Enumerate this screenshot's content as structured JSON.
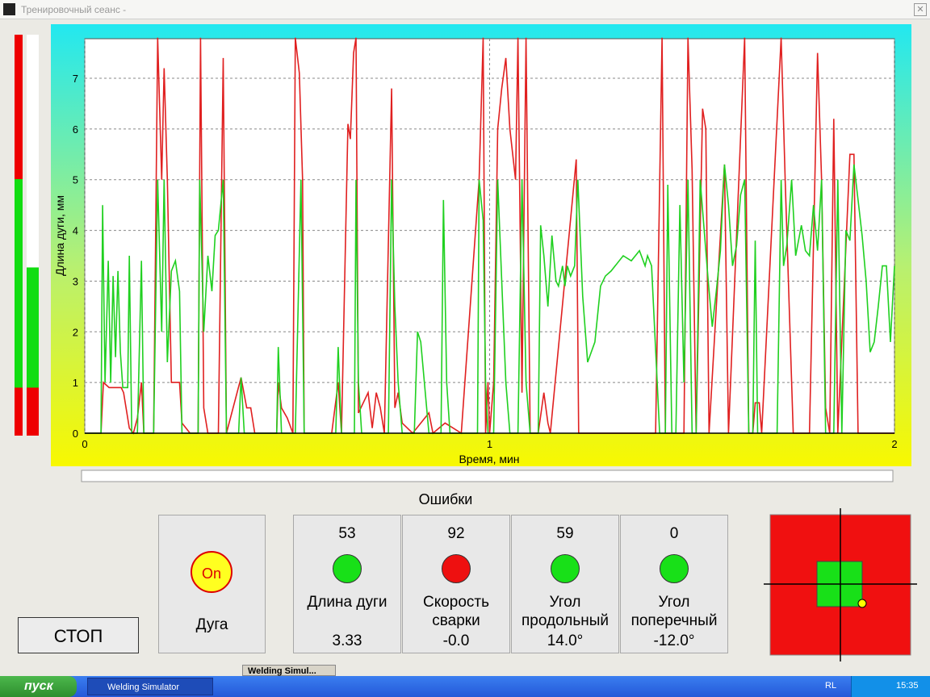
{
  "window": {
    "title": "Тренировочный сеанс -"
  },
  "chart_data": {
    "type": "line",
    "ylabel": "Длина дуги, мм",
    "xlabel": "Время, мин",
    "xlim": [
      0,
      2
    ],
    "xticks": [
      0,
      1,
      2
    ],
    "ylim": [
      0,
      7.78
    ],
    "yticks": [
      0,
      1,
      2,
      3,
      4,
      5,
      6,
      7
    ],
    "grid": true,
    "series": [
      {
        "color": "#e02020",
        "x": [
          0,
          0.04,
          0.046,
          0.06,
          0.09,
          0.096,
          0.11,
          0.12,
          0.13,
          0.14,
          0.146,
          0.17,
          0.18,
          0.19,
          0.196,
          0.204,
          0.214,
          0.234,
          0.24,
          0.26,
          0.28,
          0.286,
          0.294,
          0.304,
          0.33,
          0.342,
          0.35,
          0.386,
          0.4,
          0.41,
          0.42,
          0.474,
          0.478,
          0.486,
          0.5,
          0.514,
          0.52,
          0.53,
          0.538,
          0.542,
          0.61,
          0.626,
          0.634,
          0.65,
          0.656,
          0.664,
          0.67,
          0.676,
          0.7,
          0.71,
          0.72,
          0.73,
          0.74,
          0.758,
          0.766,
          0.774,
          0.784,
          0.81,
          0.85,
          0.86,
          0.89,
          0.91,
          0.93,
          0.974,
          0.984,
          0.99,
          0.996,
          1.0,
          1.01,
          1.02,
          1.03,
          1.04,
          1.05,
          1.064,
          1.07,
          1.08,
          1.09,
          1.1,
          1.12,
          1.134,
          1.144,
          1.15,
          1.214,
          1.22,
          1.41,
          1.426,
          1.434,
          1.48,
          1.49,
          1.5,
          1.51,
          1.526,
          1.534,
          1.542,
          1.58,
          1.59,
          1.63,
          1.64,
          1.65,
          1.656,
          1.666,
          1.672,
          1.72,
          1.73,
          1.75,
          1.79,
          1.81,
          1.82,
          1.83,
          1.84,
          1.85,
          1.86,
          1.89,
          1.9,
          1.91,
          2.0
        ],
        "values": [
          0,
          0,
          1,
          0.9,
          0.9,
          0.8,
          0.1,
          0,
          0.3,
          1,
          0,
          0,
          7.8,
          5,
          7.2,
          5,
          1,
          1,
          0.2,
          0,
          0,
          7.8,
          0.5,
          0,
          0,
          7.4,
          0,
          1.1,
          0.5,
          0.5,
          0,
          0,
          1,
          0.5,
          0.3,
          0,
          7.8,
          7.1,
          5,
          0,
          0,
          1,
          0,
          6.1,
          5.8,
          7.5,
          7.8,
          0.4,
          0.8,
          0.1,
          0.8,
          0.5,
          0,
          6.8,
          0.5,
          0.8,
          0.2,
          0,
          0.4,
          0,
          0.2,
          0.1,
          0,
          5,
          7.8,
          0,
          1,
          0,
          1,
          6,
          6.8,
          7.4,
          6,
          5,
          7.8,
          0.8,
          7.8,
          0,
          0,
          0.8,
          0.2,
          0,
          5.4,
          0,
          0,
          7.8,
          0,
          0,
          7.8,
          5.2,
          0,
          6.4,
          6,
          0,
          5.3,
          0,
          7.8,
          0,
          0,
          0.6,
          0.6,
          0,
          7.8,
          5,
          0,
          0,
          7.5,
          5,
          0.5,
          0,
          6.2,
          0,
          5.5,
          5.5,
          0,
          0
        ]
      },
      {
        "color": "#20d020",
        "x": [
          0,
          0.04,
          0.044,
          0.05,
          0.058,
          0.064,
          0.07,
          0.076,
          0.082,
          0.088,
          0.094,
          0.106,
          0.11,
          0.116,
          0.13,
          0.14,
          0.146,
          0.17,
          0.18,
          0.19,
          0.196,
          0.204,
          0.214,
          0.224,
          0.234,
          0.24,
          0.28,
          0.284,
          0.294,
          0.304,
          0.314,
          0.322,
          0.33,
          0.342,
          0.35,
          0.38,
          0.386,
          0.394,
          0.474,
          0.478,
          0.486,
          0.52,
          0.534,
          0.542,
          0.62,
          0.626,
          0.634,
          0.666,
          0.67,
          0.676,
          0.684,
          0.75,
          0.758,
          0.766,
          0.774,
          0.784,
          0.814,
          0.822,
          0.83,
          0.85,
          0.88,
          0.886,
          0.894,
          0.902,
          0.97,
          0.974,
          0.984,
          0.99,
          0.996,
          1.01,
          1.02,
          1.03,
          1.04,
          1.05,
          1.07,
          1.08,
          1.09,
          1.1,
          1.12,
          1.126,
          1.134,
          1.144,
          1.154,
          1.164,
          1.17,
          1.18,
          1.186,
          1.192,
          1.2,
          1.21,
          1.218,
          1.23,
          1.242,
          1.26,
          1.274,
          1.286,
          1.3,
          1.33,
          1.35,
          1.37,
          1.384,
          1.39,
          1.4,
          1.42,
          1.434,
          1.44,
          1.45,
          1.46,
          1.47,
          1.48,
          1.49,
          1.5,
          1.51,
          1.52,
          1.53,
          1.54,
          1.55,
          1.56,
          1.57,
          1.58,
          1.59,
          1.6,
          1.61,
          1.62,
          1.63,
          1.64,
          1.65,
          1.656,
          1.662,
          1.71,
          1.72,
          1.726,
          1.734,
          1.746,
          1.756,
          1.77,
          1.78,
          1.79,
          1.8,
          1.81,
          1.82,
          1.83,
          1.85,
          1.86,
          1.87,
          1.88,
          1.89,
          1.9,
          1.91,
          1.92,
          1.93,
          1.94,
          1.95,
          1.96,
          1.97,
          1.98,
          1.99,
          2.0
        ],
        "values": [
          0,
          0,
          4.5,
          1,
          3.4,
          1,
          3.1,
          1.5,
          3.2,
          1.6,
          0.9,
          0.9,
          3.5,
          0,
          0,
          3.4,
          0,
          0,
          5,
          2,
          5,
          1.4,
          3.2,
          3.4,
          2.8,
          0,
          0,
          5,
          2,
          3.5,
          2.8,
          3.9,
          4,
          5,
          0,
          0,
          1.1,
          0,
          0,
          1.7,
          0,
          0,
          5,
          0,
          0,
          1.7,
          0,
          0,
          5,
          1,
          0,
          0,
          5,
          2.5,
          1,
          0,
          0,
          2,
          1.8,
          0,
          0,
          4.6,
          1,
          0,
          0,
          5,
          4.2,
          1,
          0,
          0,
          5,
          3,
          1,
          0,
          0,
          5,
          1,
          0,
          0,
          4.1,
          3.5,
          2.5,
          3.9,
          3,
          2.9,
          3.3,
          2.9,
          3.3,
          3.1,
          3.3,
          5,
          2.7,
          1.4,
          1.8,
          2.9,
          3.1,
          3.2,
          3.5,
          3.4,
          3.6,
          3.3,
          3.5,
          3.3,
          0,
          0,
          4.9,
          0,
          0,
          4.5,
          1,
          5,
          0,
          0,
          5,
          4,
          3,
          2.1,
          2.8,
          3.6,
          5.3,
          4.5,
          3.3,
          3.7,
          4.7,
          5,
          0,
          0,
          3.8,
          0,
          0,
          5,
          3.3,
          3.7,
          5,
          3.5,
          4.1,
          3.6,
          3.5,
          4.5,
          3.6,
          5,
          0,
          0,
          5,
          0,
          4,
          3.8,
          5.3,
          4.6,
          3.9,
          3,
          1.6,
          1.8,
          2.5,
          3.3,
          3.3,
          1.8,
          3.3
        ]
      }
    ]
  },
  "errors": {
    "title": "Ошибки",
    "arc": {
      "badge": "On",
      "label": "Дуга"
    },
    "indicators": [
      {
        "count": "53",
        "label": [
          "Длина дуги"
        ],
        "value": "3.33",
        "color": "#18e018"
      },
      {
        "count": "92",
        "label": [
          "Скорость",
          "сварки"
        ],
        "value": "-0.0",
        "color": "#ee1010"
      },
      {
        "count": "59",
        "label": [
          "Угол",
          "продольный"
        ],
        "value": "14.0°",
        "color": "#18e018"
      },
      {
        "count": "0",
        "label": [
          "Угол",
          "поперечный"
        ],
        "value": "-12.0°",
        "color": "#18e018"
      }
    ]
  },
  "stop_button": "СТОП",
  "taskbar": {
    "start": "пуск",
    "task": "Welding Simulator",
    "tab": "Welding Simul...",
    "lang": "RL",
    "clock": "15:35"
  }
}
